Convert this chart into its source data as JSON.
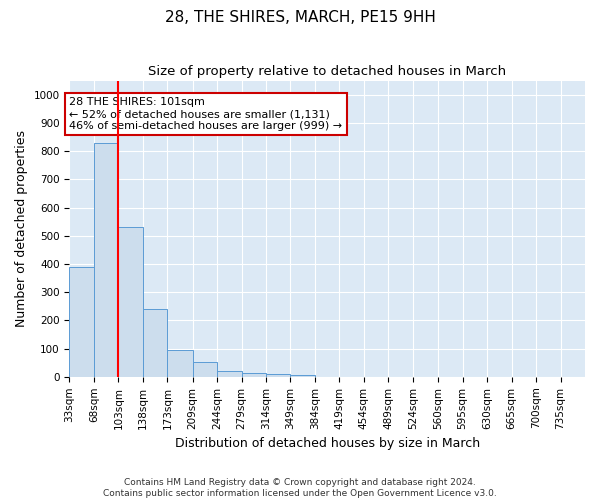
{
  "title": "28, THE SHIRES, MARCH, PE15 9HH",
  "subtitle": "Size of property relative to detached houses in March",
  "xlabel": "Distribution of detached houses by size in March",
  "ylabel": "Number of detached properties",
  "bar_color": "#ccdded",
  "bar_edge_color": "#5b9bd5",
  "background_color": "#dce9f5",
  "grid_color": "#ffffff",
  "annotation_text": "28 THE SHIRES: 101sqm\n← 52% of detached houses are smaller (1,131)\n46% of semi-detached houses are larger (999) →",
  "annotation_box_edge": "#cc0000",
  "bins": [
    33,
    68,
    103,
    138,
    173,
    209,
    244,
    279,
    314,
    349,
    384,
    419,
    454,
    489,
    524,
    560,
    595,
    630,
    665,
    700,
    735
  ],
  "values": [
    390,
    830,
    530,
    240,
    95,
    52,
    20,
    13,
    10,
    8,
    0,
    0,
    0,
    0,
    0,
    0,
    0,
    0,
    0,
    0
  ],
  "ylim": [
    0,
    1050
  ],
  "yticks": [
    0,
    100,
    200,
    300,
    400,
    500,
    600,
    700,
    800,
    900,
    1000
  ],
  "footer": "Contains HM Land Registry data © Crown copyright and database right 2024.\nContains public sector information licensed under the Open Government Licence v3.0.",
  "title_fontsize": 11,
  "subtitle_fontsize": 9.5,
  "axis_label_fontsize": 9,
  "tick_fontsize": 7.5,
  "footer_fontsize": 6.5,
  "annotation_fontsize": 8
}
